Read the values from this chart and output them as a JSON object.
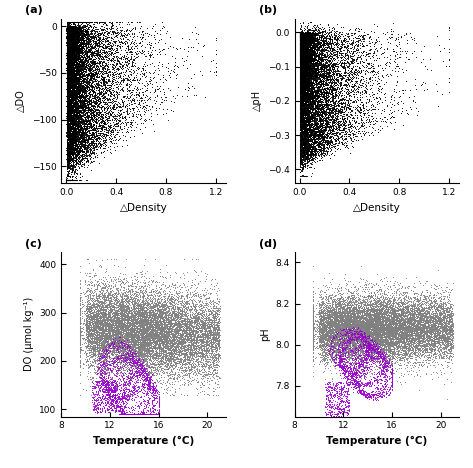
{
  "figsize": [
    4.73,
    4.68
  ],
  "dpi": 100,
  "panel_labels": [
    "(a)",
    "(b)",
    "(c)",
    "(d)"
  ],
  "panel_a": {
    "xlabel": "△Density",
    "ylabel": "△DO",
    "xlim": [
      -0.04,
      1.28
    ],
    "ylim": [
      -168,
      8
    ],
    "xticks": [
      0,
      0.4,
      0.8,
      1.2
    ],
    "yticks": [
      0,
      -50,
      -100,
      -150
    ],
    "color": "black",
    "markersize": 0.6
  },
  "panel_b": {
    "xlabel": "△Density",
    "ylabel": "△pH",
    "xlim": [
      -0.04,
      1.28
    ],
    "ylim": [
      -0.44,
      0.04
    ],
    "xticks": [
      0,
      0.4,
      0.8,
      1.2
    ],
    "yticks": [
      0,
      -0.1,
      -0.2,
      -0.3,
      -0.4
    ],
    "color": "black",
    "markersize": 0.6
  },
  "panel_c": {
    "xlabel": "Temperature (°C)",
    "ylabel": "DO (μmol kg⁻¹)",
    "xlim": [
      8,
      21.5
    ],
    "ylim": [
      85,
      425
    ],
    "xticks": [
      8,
      12,
      16,
      20
    ],
    "yticks": [
      100,
      200,
      300,
      400
    ],
    "color_gray": "#808080",
    "color_purple": "#9900CC",
    "markersize": 0.6
  },
  "panel_d": {
    "xlabel": "Temperature (°C)",
    "ylabel": "pH",
    "xlim": [
      8,
      21.5
    ],
    "ylim": [
      7.65,
      8.45
    ],
    "xticks": [
      8,
      12,
      16,
      20
    ],
    "yticks": [
      7.8,
      8.0,
      8.2,
      8.4
    ],
    "color_gray": "#808080",
    "color_purple": "#9900CC",
    "markersize": 0.6
  },
  "xlabel_fontsize": 7.5,
  "ylabel_fontsize": 7,
  "tick_fontsize": 6.5,
  "panel_label_fontsize": 8
}
